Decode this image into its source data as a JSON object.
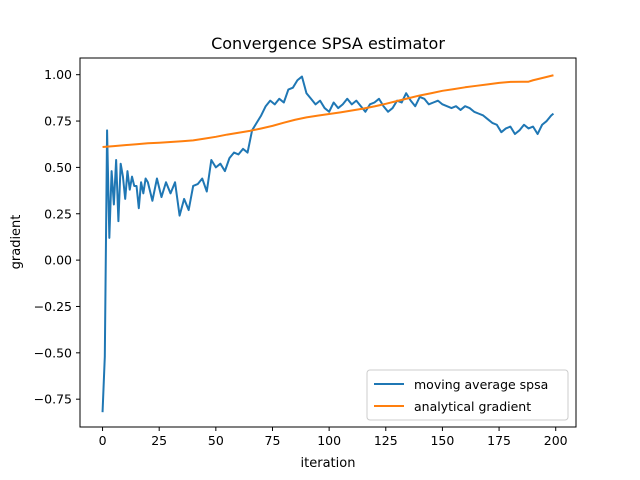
{
  "chart_data": {
    "type": "line",
    "title": "Convergence SPSA estimator",
    "xlabel": "iteration",
    "ylabel": "gradient",
    "xlim": [
      -9.95,
      208.95
    ],
    "ylim": [
      -0.9,
      1.09
    ],
    "xticks": [
      0,
      25,
      50,
      75,
      100,
      125,
      150,
      175,
      200
    ],
    "yticks": [
      -0.75,
      -0.5,
      -0.25,
      0.0,
      0.25,
      0.5,
      0.75,
      1.0
    ],
    "ytick_labels": [
      "−0.75",
      "−0.50",
      "−0.25",
      "0.00",
      "0.25",
      "0.50",
      "0.75",
      "1.00"
    ],
    "grid": false,
    "legend_position": "lower-right",
    "series": [
      {
        "name": "moving average spsa",
        "color": "#1f77b4",
        "x": [
          0,
          1,
          2,
          3,
          4,
          5,
          6,
          7,
          8,
          9,
          10,
          11,
          12,
          13,
          14,
          15,
          16,
          17,
          18,
          19,
          20,
          22,
          24,
          26,
          28,
          30,
          32,
          34,
          36,
          38,
          40,
          42,
          44,
          46,
          48,
          50,
          52,
          54,
          56,
          58,
          60,
          62,
          64,
          66,
          68,
          70,
          72,
          74,
          76,
          78,
          80,
          82,
          84,
          86,
          88,
          90,
          92,
          94,
          96,
          98,
          100,
          102,
          104,
          106,
          108,
          110,
          112,
          114,
          116,
          118,
          120,
          122,
          124,
          126,
          128,
          130,
          132,
          134,
          136,
          138,
          140,
          142,
          144,
          146,
          148,
          150,
          152,
          154,
          156,
          158,
          160,
          162,
          164,
          166,
          168,
          170,
          172,
          174,
          176,
          178,
          180,
          182,
          184,
          186,
          188,
          190,
          192,
          194,
          196,
          198,
          199
        ],
        "y": [
          -0.82,
          -0.52,
          0.7,
          0.12,
          0.48,
          0.3,
          0.54,
          0.21,
          0.52,
          0.45,
          0.33,
          0.48,
          0.38,
          0.45,
          0.4,
          0.4,
          0.28,
          0.42,
          0.36,
          0.44,
          0.42,
          0.32,
          0.44,
          0.34,
          0.42,
          0.36,
          0.42,
          0.24,
          0.33,
          0.27,
          0.4,
          0.41,
          0.44,
          0.37,
          0.54,
          0.5,
          0.52,
          0.48,
          0.55,
          0.58,
          0.57,
          0.6,
          0.58,
          0.7,
          0.74,
          0.78,
          0.83,
          0.86,
          0.84,
          0.87,
          0.85,
          0.92,
          0.93,
          0.97,
          0.99,
          0.9,
          0.87,
          0.84,
          0.86,
          0.82,
          0.8,
          0.85,
          0.82,
          0.84,
          0.87,
          0.84,
          0.86,
          0.83,
          0.8,
          0.84,
          0.85,
          0.87,
          0.83,
          0.8,
          0.82,
          0.86,
          0.85,
          0.9,
          0.86,
          0.83,
          0.88,
          0.87,
          0.84,
          0.85,
          0.86,
          0.84,
          0.83,
          0.82,
          0.83,
          0.81,
          0.83,
          0.82,
          0.8,
          0.79,
          0.78,
          0.76,
          0.74,
          0.73,
          0.69,
          0.71,
          0.72,
          0.68,
          0.7,
          0.73,
          0.71,
          0.72,
          0.68,
          0.73,
          0.75,
          0.78,
          0.79
        ]
      },
      {
        "name": "analytical gradient",
        "color": "#ff7f0e",
        "x": [
          0,
          5,
          10,
          15,
          20,
          25,
          30,
          35,
          40,
          45,
          50,
          55,
          60,
          65,
          70,
          75,
          80,
          85,
          90,
          95,
          100,
          105,
          110,
          115,
          120,
          125,
          130,
          135,
          140,
          145,
          150,
          155,
          160,
          165,
          170,
          175,
          180,
          185,
          188,
          190,
          195,
          199
        ],
        "y": [
          0.61,
          0.615,
          0.62,
          0.625,
          0.63,
          0.633,
          0.637,
          0.641,
          0.646,
          0.655,
          0.665,
          0.677,
          0.687,
          0.697,
          0.71,
          0.724,
          0.741,
          0.757,
          0.77,
          0.779,
          0.788,
          0.797,
          0.807,
          0.817,
          0.829,
          0.843,
          0.858,
          0.873,
          0.888,
          0.9,
          0.913,
          0.922,
          0.932,
          0.94,
          0.948,
          0.956,
          0.961,
          0.962,
          0.962,
          0.97,
          0.985,
          0.997
        ]
      }
    ]
  }
}
